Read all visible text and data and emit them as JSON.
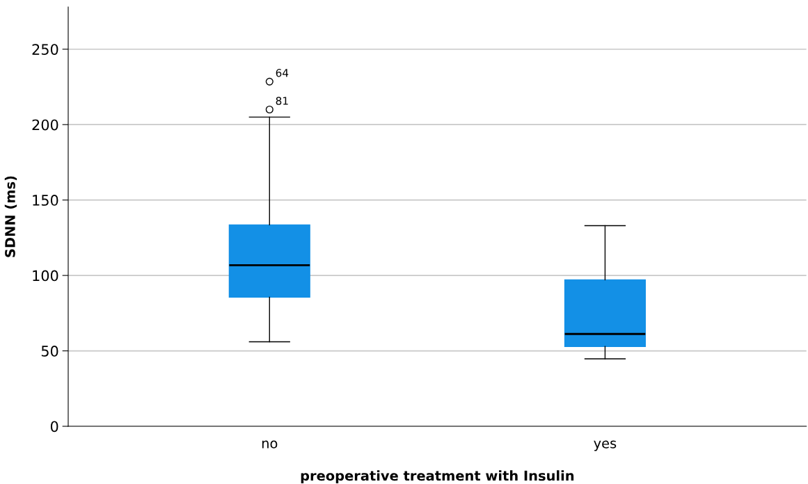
{
  "chart_data": {
    "type": "box",
    "xlabel": "preoperative treatment with Insulin",
    "ylabel": "SDNN (ms)",
    "categories": [
      "no",
      "yes"
    ],
    "boxes": [
      {
        "low": 56,
        "q1": 85.6,
        "median": 106.8,
        "q3": 133.5,
        "high": 205,
        "outliers": [
          228.5,
          210
        ]
      },
      {
        "low": 44.7,
        "q1": 52.9,
        "median": 61.2,
        "q3": 97.1,
        "high": 133
      }
    ],
    "color": "#1390e6",
    "ylim": [
      0,
      278
    ],
    "yticks": [
      0,
      50,
      100,
      150,
      200,
      250
    ],
    "grid": "y",
    "annotations": [
      "64",
      "81"
    ]
  }
}
